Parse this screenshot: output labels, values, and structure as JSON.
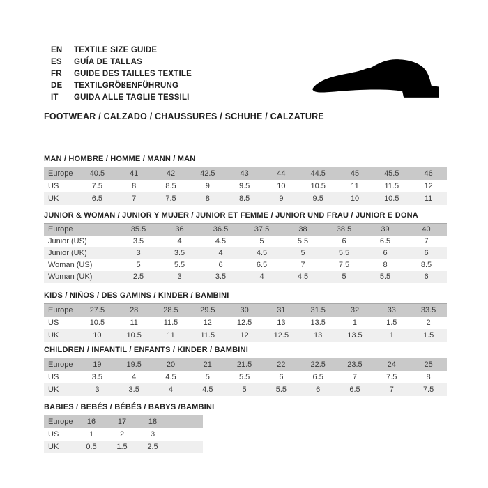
{
  "header": {
    "languages": [
      {
        "code": "EN",
        "text": "TEXTILE SIZE GUIDE"
      },
      {
        "code": "ES",
        "text": "GUÍA DE TALLAS"
      },
      {
        "code": "FR",
        "text": "GUIDE DES TAILLES TEXTILE"
      },
      {
        "code": "DE",
        "text": "TEXTILGRÖßENFÜHRUNG"
      },
      {
        "code": "IT",
        "text": "GUIDA ALLE TAGLIE TESSILI"
      }
    ],
    "category_line": "FOOTWEAR / CALZADO / CHAUSSURES / SCHUHE / CALZATURE",
    "shoe_icon": "shoe-silhouette-icon"
  },
  "colors": {
    "header_row_bg": "#c9c9c9",
    "alt_row_bg": "#efefef",
    "shoe_icon_fill": "#000000",
    "text": "#262626"
  },
  "tables": [
    {
      "title": "MAN / HOMBRE / HOMME / MANN / MAN",
      "rows": [
        {
          "label": "Europe",
          "values": [
            "40.5",
            "41",
            "42",
            "42.5",
            "43",
            "44",
            "44.5",
            "45",
            "45.5",
            "46"
          ]
        },
        {
          "label": "US",
          "values": [
            "7.5",
            "8",
            "8.5",
            "9",
            "9.5",
            "10",
            "10.5",
            "11",
            "11.5",
            "12"
          ]
        },
        {
          "label": "UK",
          "values": [
            "6.5",
            "7",
            "7.5",
            "8",
            "8.5",
            "9",
            "9.5",
            "10",
            "10.5",
            "11"
          ]
        }
      ]
    },
    {
      "title": "JUNIOR & WOMAN / JUNIOR Y MUJER / JUNIOR ET FEMME / JUNIOR UND FRAU / JUNIOR E DONA",
      "rows": [
        {
          "label": "Europe",
          "values": [
            "35.5",
            "36",
            "36.5",
            "37.5",
            "38",
            "38.5",
            "39",
            "40"
          ]
        },
        {
          "label": "Junior (US)",
          "values": [
            "3.5",
            "4",
            "4.5",
            "5",
            "5.5",
            "6",
            "6.5",
            "7"
          ]
        },
        {
          "label": "Junior (UK)",
          "values": [
            "3",
            "3.5",
            "4",
            "4.5",
            "5",
            "5.5",
            "6",
            "6"
          ]
        },
        {
          "label": "Woman (US)",
          "values": [
            "5",
            "5.5",
            "6",
            "6.5",
            "7",
            "7.5",
            "8",
            "8.5"
          ]
        },
        {
          "label": "Woman (UK)",
          "values": [
            "2.5",
            "3",
            "3.5",
            "4",
            "4.5",
            "5",
            "5.5",
            "6"
          ]
        }
      ]
    },
    {
      "title": "KIDS / NIÑOS / DES GAMINS / KINDER / BAMBINI",
      "rows": [
        {
          "label": "Europe",
          "values": [
            "27.5",
            "28",
            "28.5",
            "29.5",
            "30",
            "31",
            "31.5",
            "32",
            "33",
            "33.5"
          ]
        },
        {
          "label": "US",
          "values": [
            "10.5",
            "11",
            "11.5",
            "12",
            "12.5",
            "13",
            "13.5",
            "1",
            "1.5",
            "2"
          ]
        },
        {
          "label": "UK",
          "values": [
            "10",
            "10.5",
            "11",
            "11.5",
            "12",
            "12.5",
            "13",
            "13.5",
            "1",
            "1.5"
          ]
        }
      ]
    },
    {
      "title": "CHILDREN / INFANTIL / ENFANTS / KINDER / BAMBINI",
      "rows": [
        {
          "label": "Europe",
          "values": [
            "19",
            "19.5",
            "20",
            "21",
            "21.5",
            "22",
            "22.5",
            "23.5",
            "24",
            "25"
          ]
        },
        {
          "label": "US",
          "values": [
            "3.5",
            "4",
            "4.5",
            "5",
            "5.5",
            "6",
            "6.5",
            "7",
            "7.5",
            "8"
          ]
        },
        {
          "label": "UK",
          "values": [
            "3",
            "3.5",
            "4",
            "4.5",
            "5",
            "5.5",
            "6",
            "6.5",
            "7",
            "7.5"
          ]
        }
      ]
    },
    {
      "title": "BABIES / BEBÉS / BÉBÉS / BABYS /BAMBINI",
      "rows": [
        {
          "label": "Europe",
          "values": [
            "16",
            "17",
            "18"
          ]
        },
        {
          "label": "US",
          "values": [
            "1",
            "2",
            "3"
          ]
        },
        {
          "label": "UK",
          "values": [
            "0.5",
            "1.5",
            "2.5"
          ]
        }
      ]
    }
  ]
}
